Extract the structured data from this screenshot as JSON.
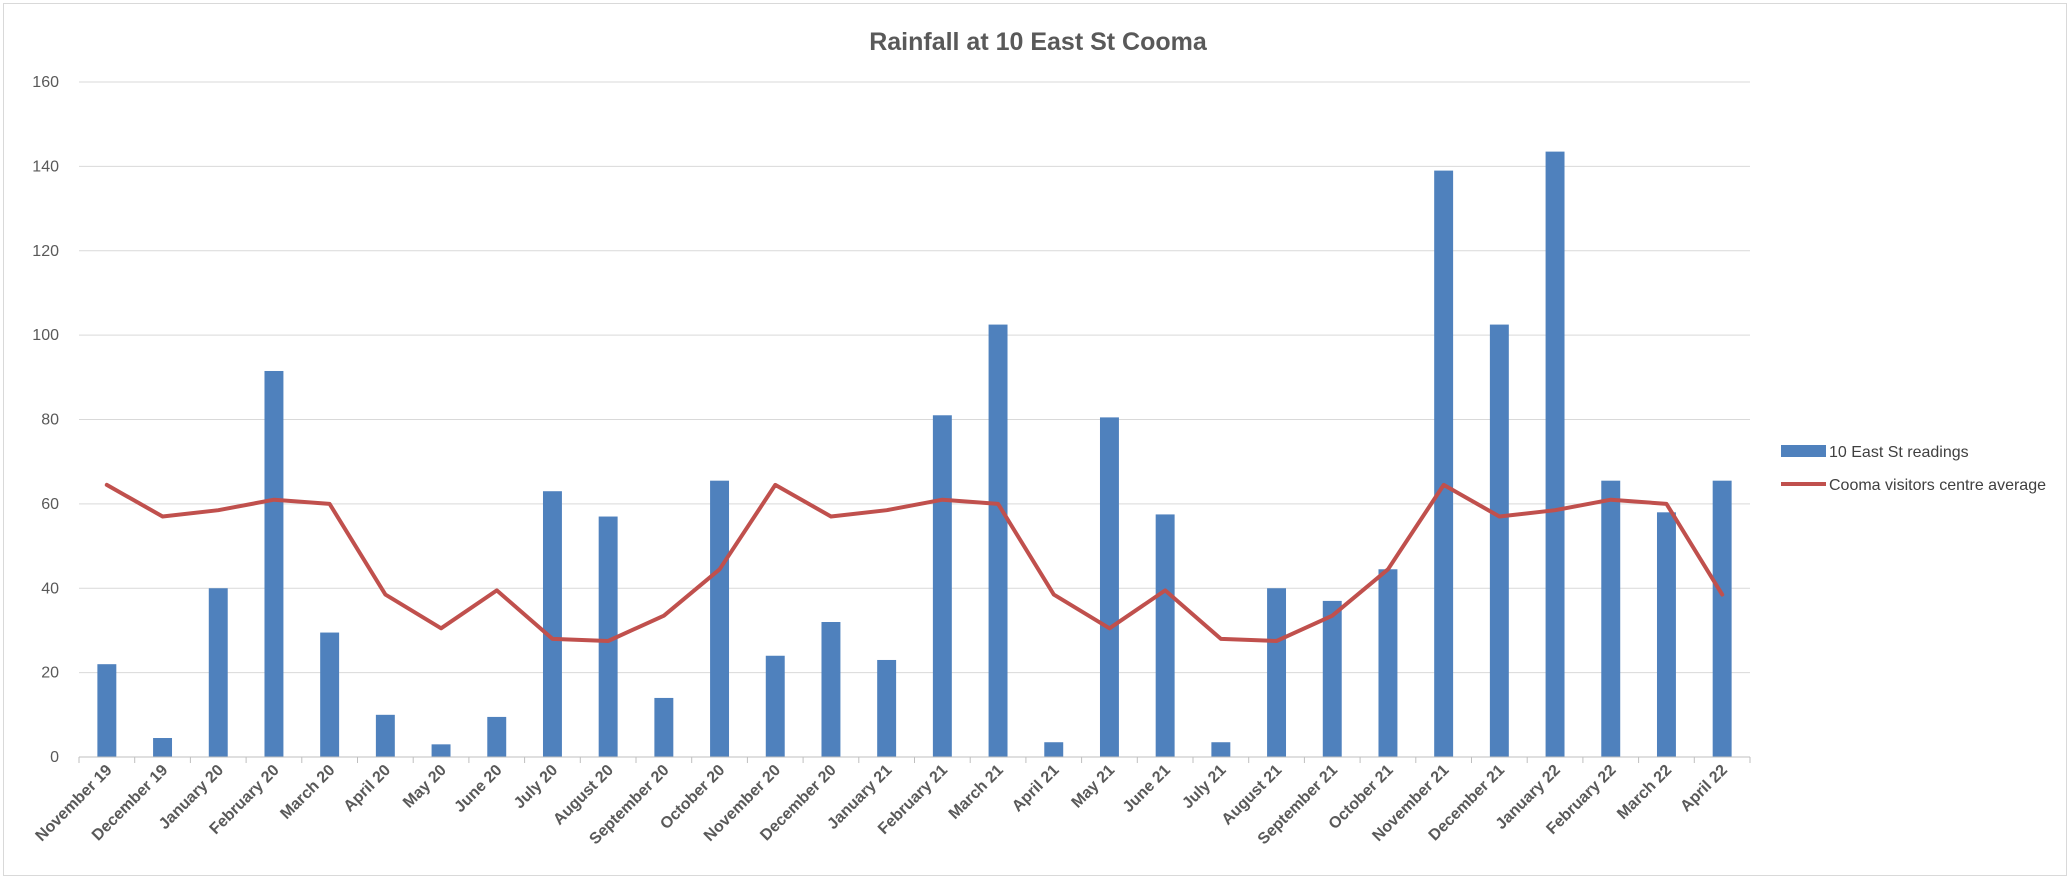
{
  "chart_data": {
    "type": "bar",
    "title": "Rainfall at 10 East St Cooma",
    "xlabel": "",
    "ylabel": "",
    "ylim": [
      0,
      160
    ],
    "yticks": [
      0,
      20,
      40,
      60,
      80,
      100,
      120,
      140,
      160
    ],
    "grid": true,
    "legend_position": "right",
    "categories": [
      "November 19",
      "December 19",
      "January 20",
      "February 20",
      "March 20",
      "April 20",
      "May 20",
      "June 20",
      "July 20",
      "August 20",
      "September 20",
      "October 20",
      "November 20",
      "December 20",
      "January 21",
      "February 21",
      "March 21",
      "April 21",
      "May 21",
      "June 21",
      "July 21",
      "August 21",
      "September 21",
      "October 21",
      "November 21",
      "December 21",
      "January 22",
      "February 22",
      "March 22",
      "April 22"
    ],
    "series": [
      {
        "name": "10 East St readings",
        "type": "bar",
        "color": "#4f81bd",
        "values": [
          22,
          4.5,
          40,
          91.5,
          29.5,
          10,
          3,
          9.5,
          63,
          57,
          14,
          65.5,
          24,
          32,
          23,
          81,
          102.5,
          3.5,
          80.5,
          57.5,
          3.5,
          40,
          37,
          44.5,
          139,
          102.5,
          143.5,
          65.5,
          58,
          65.5
        ]
      },
      {
        "name": "Cooma visitors centre average",
        "type": "line",
        "color": "#c0504d",
        "values": [
          64.5,
          57,
          58.5,
          61,
          60,
          38.5,
          30.5,
          39.5,
          28,
          27.5,
          33.5,
          44.5,
          64.5,
          57,
          58.5,
          61,
          60,
          38.5,
          30.5,
          39.5,
          28,
          27.5,
          33.5,
          44.5,
          64.5,
          57,
          58.5,
          61,
          60,
          38.5
        ]
      }
    ]
  }
}
